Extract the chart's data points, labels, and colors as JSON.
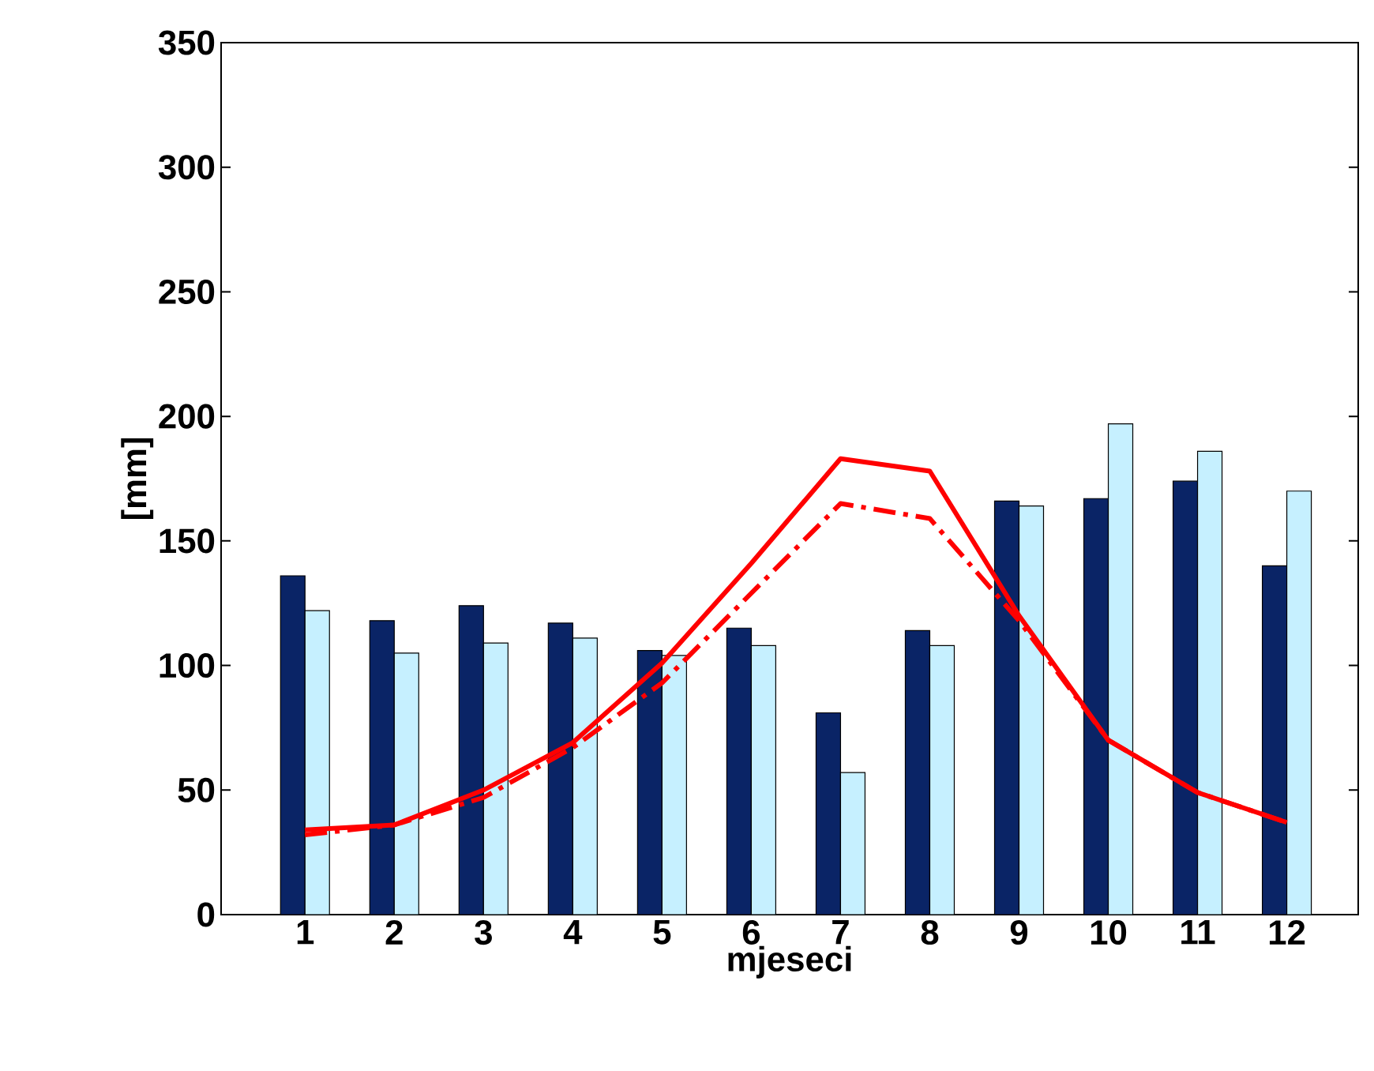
{
  "chart_data": {
    "type": "bar",
    "xlabel": "mjeseci",
    "ylabel": "[mm]",
    "categories": [
      "1",
      "2",
      "3",
      "4",
      "5",
      "6",
      "7",
      "8",
      "9",
      "10",
      "11",
      "12"
    ],
    "ylim": [
      0,
      350
    ],
    "yticks": [
      0,
      50,
      100,
      150,
      200,
      250,
      300,
      350
    ],
    "series": [
      {
        "color": "#0a2466",
        "values": [
          136,
          118,
          124,
          117,
          106,
          115,
          81,
          114,
          166,
          167,
          174,
          140
        ]
      },
      {
        "color": "#c6f0ff",
        "values": [
          122,
          105,
          109,
          111,
          104,
          108,
          57,
          108,
          164,
          197,
          186,
          170
        ]
      },
      {
        "type": "line",
        "color": "#ff0000",
        "line_style": "solid",
        "values": [
          34,
          36,
          50,
          69,
          101,
          141,
          183,
          178,
          120,
          70,
          49,
          37
        ]
      },
      {
        "type": "line",
        "color": "#ff0000",
        "line_style": "dashdot",
        "values": [
          32,
          36,
          47,
          67,
          93,
          129,
          165,
          159,
          118,
          70,
          49,
          37
        ]
      }
    ]
  }
}
